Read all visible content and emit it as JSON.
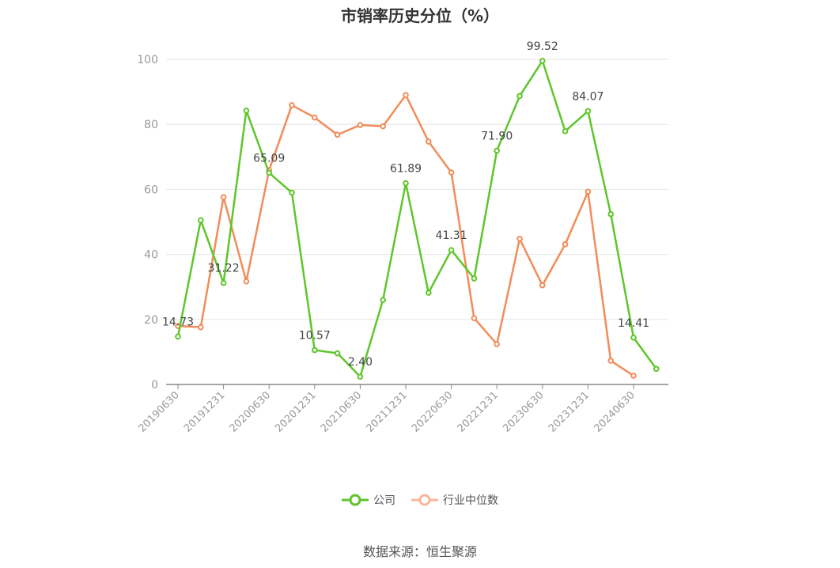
{
  "chart_data": {
    "type": "line",
    "title": "市销率历史分位（%）",
    "x": [
      "20190630",
      "20191231-h",
      "20191231",
      "20200630-h",
      "20200630",
      "20201231-h",
      "20201231",
      "20210630-h",
      "20210630",
      "20211231-h",
      "20211231",
      "20220630-h",
      "20220630",
      "20221231-h",
      "20221231",
      "20230630-h",
      "20230630",
      "20231231-h",
      "20231231",
      "20240630-h",
      "20240630",
      "end"
    ],
    "tick_labels": [
      "20190630",
      "20191231",
      "20200630",
      "20201231",
      "20210630",
      "20211231",
      "20220630",
      "20221231",
      "20230630",
      "20231231",
      "20240630"
    ],
    "ylim": [
      0,
      100
    ],
    "yticks": [
      0,
      20,
      40,
      60,
      80,
      100
    ],
    "grid": true,
    "legend_position": "bottom",
    "series": [
      {
        "name": "公司",
        "color": "#5ec62b",
        "values": [
          14.73,
          50.5,
          31.22,
          84.2,
          65.09,
          59.0,
          10.57,
          9.6,
          2.4,
          26.0,
          61.89,
          28.2,
          41.31,
          32.6,
          71.9,
          88.7,
          99.52,
          77.9,
          84.07,
          52.4,
          14.41,
          4.8
        ],
        "labels": [
          "14.73",
          null,
          "31.22",
          null,
          "65.09",
          null,
          "10.57",
          null,
          "2.40",
          null,
          "61.89",
          null,
          "41.31",
          null,
          "71.90",
          null,
          "99.52",
          null,
          "84.07",
          null,
          "14.41",
          null
        ]
      },
      {
        "name": "行业中位数",
        "color": "#f28c5a",
        "values": [
          18.0,
          17.6,
          57.6,
          31.7,
          65.9,
          85.9,
          82.1,
          76.8,
          79.8,
          79.4,
          89.0,
          74.7,
          65.2,
          20.4,
          12.4,
          44.8,
          30.5,
          43.1,
          59.3,
          7.3,
          2.7,
          null
        ]
      }
    ]
  },
  "legend": {
    "company_label": "公司",
    "industry_label": "行业中位数"
  },
  "source_text": "数据来源：恒生聚源"
}
